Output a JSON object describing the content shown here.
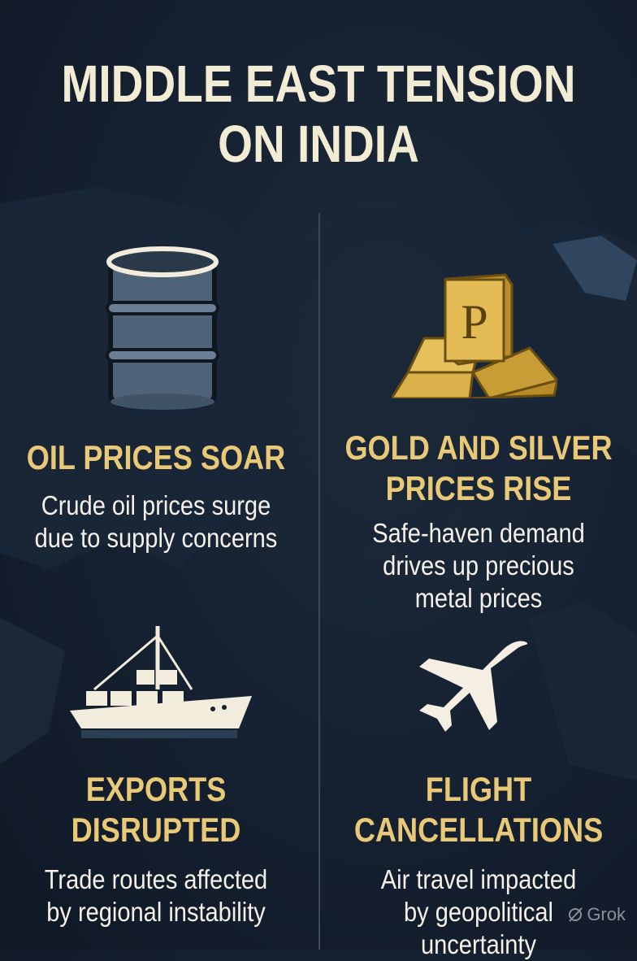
{
  "title": {
    "line1": "MIDDLE EAST TENSION",
    "line2": "ON INDIA"
  },
  "sections": [
    {
      "icon": "oil-barrel-icon",
      "heading": [
        "OIL PRICES SOAR"
      ],
      "body": [
        "Crude oil prices surge",
        "due to supply concerns"
      ]
    },
    {
      "icon": "gold-bars-icon",
      "icon_letter": "P",
      "heading": [
        "GOLD AND SILVER",
        "PRICES RISE"
      ],
      "body": [
        "Safe-haven demand",
        "drives up precious",
        "metal prices"
      ]
    },
    {
      "icon": "cargo-ship-icon",
      "heading": [
        "EXPORTS",
        "DISRUPTED"
      ],
      "body": [
        "Trade routes affected",
        "by regional instability"
      ]
    },
    {
      "icon": "airplane-icon",
      "heading": [
        "FLIGHT",
        "CANCELLATIONS"
      ],
      "body": [
        "Air travel impacted",
        "by geopolitical",
        "uncertainty"
      ]
    }
  ],
  "watermark": "Grok",
  "colors": {
    "background": "#152030",
    "title": "#f3ecd4",
    "heading": "#e9c878",
    "body": "#f4f1ea",
    "gold": "#d9b04a",
    "barrel": "#4e6378"
  }
}
